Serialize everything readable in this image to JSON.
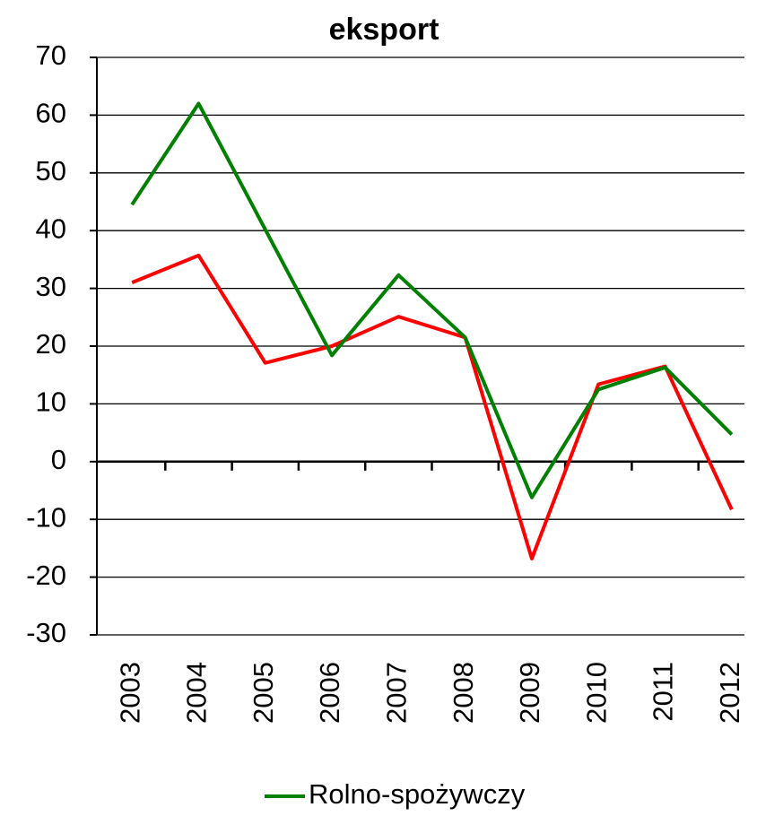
{
  "chart_data": {
    "type": "line",
    "title": "eksport",
    "categories": [
      "2003",
      "2004",
      "2005",
      "2006",
      "2007",
      "2008",
      "2009",
      "2010",
      "2011",
      "2012"
    ],
    "series": [
      {
        "color": "#ff0000",
        "values": [
          31.0,
          35.7,
          17.1,
          20.0,
          25.1,
          21.5,
          -16.8,
          13.4,
          16.5,
          -8.3
        ]
      },
      {
        "name": "Rolno-spożywczy",
        "color": "#008000",
        "values": [
          44.5,
          62.0,
          40.2,
          18.4,
          32.3,
          21.5,
          -6.2,
          12.5,
          16.3,
          4.7
        ]
      }
    ],
    "ylim": [
      -30,
      70
    ],
    "yticks": [
      -30,
      -20,
      -10,
      0,
      10,
      20,
      30,
      40,
      50,
      60,
      70
    ],
    "grid": true,
    "legend": "bottom"
  }
}
